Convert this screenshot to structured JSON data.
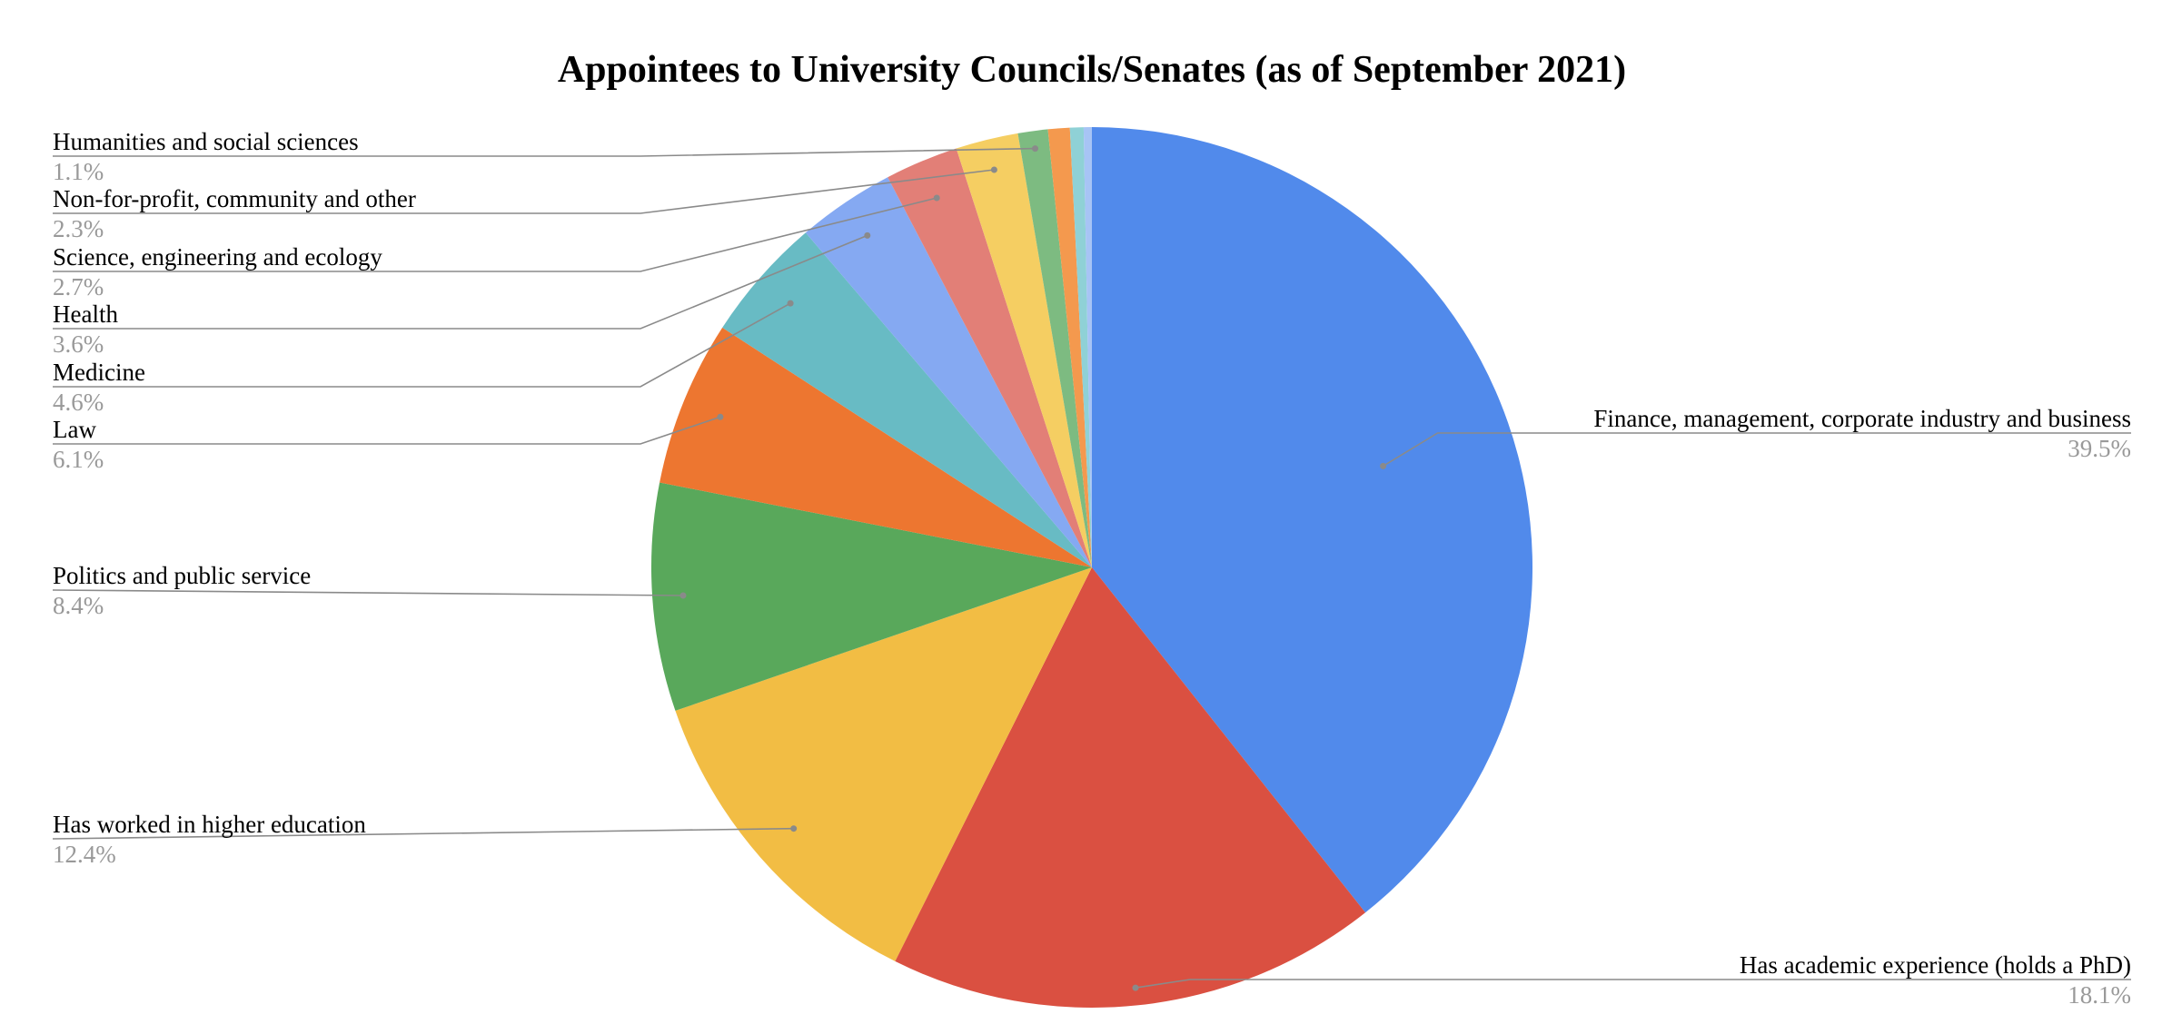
{
  "chart_data": {
    "type": "pie",
    "title": "Appointees to University Councils/Senates (as of September 2021)",
    "slices": [
      {
        "label": "Finance, management, corporate industry and business",
        "value": 39.5,
        "display": "39.5%",
        "color": "#518AEB"
      },
      {
        "label": "Has academic experience (holds a PhD)",
        "value": 18.1,
        "display": "18.1%",
        "color": "#DA5041"
      },
      {
        "label": "Has worked in higher education",
        "value": 12.4,
        "display": "12.4%",
        "color": "#F2BD44"
      },
      {
        "label": "Politics and public service",
        "value": 8.4,
        "display": "8.4%",
        "color": "#59A85B"
      },
      {
        "label": "Law",
        "value": 6.1,
        "display": "6.1%",
        "color": "#ED7630"
      },
      {
        "label": "Medicine",
        "value": 4.6,
        "display": "4.6%",
        "color": "#68BBC4"
      },
      {
        "label": "Health",
        "value": 3.6,
        "display": "3.6%",
        "color": "#85A9F2"
      },
      {
        "label": "Science, engineering and ecology",
        "value": 2.7,
        "display": "2.7%",
        "color": "#E27F77"
      },
      {
        "label": "Non-for-profit, community and other",
        "value": 2.3,
        "display": "2.3%",
        "color": "#F5CE62"
      },
      {
        "label": "Humanities and social sciences",
        "value": 1.1,
        "display": "1.1%",
        "color": "#7DBB81"
      },
      {
        "label": "",
        "value": 0.8,
        "display": "",
        "color": "#F4994E"
      },
      {
        "label": "",
        "value": 0.5,
        "display": "",
        "color": "#8FD1D6"
      },
      {
        "label": "",
        "value": 0.3,
        "display": "",
        "color": "#A7C4F5"
      }
    ],
    "legend": "none",
    "label_style": "outside labels with leader lines"
  }
}
